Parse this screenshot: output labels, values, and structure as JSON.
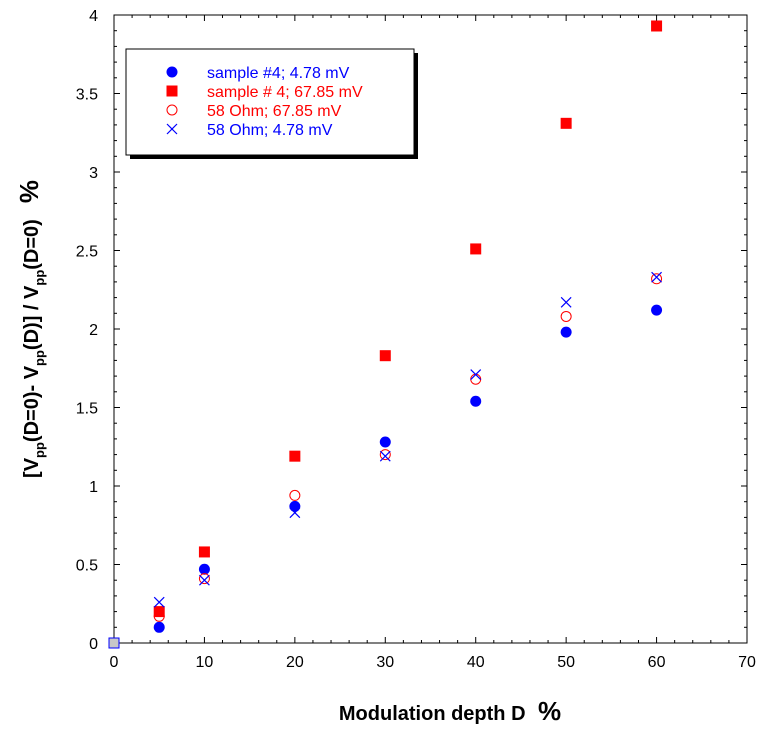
{
  "chart_data": {
    "type": "scatter",
    "xlim": [
      0,
      70
    ],
    "ylim": [
      0,
      4
    ],
    "x_ticks": [
      "0",
      "10",
      "20",
      "30",
      "40",
      "50",
      "60",
      "70"
    ],
    "y_ticks": [
      "0",
      "0.5",
      "1",
      "1.5",
      "2",
      "2.5",
      "3",
      "3.5",
      "4"
    ],
    "xlabel": "Modulation depth D",
    "xlabel_unit": "%",
    "ylabel": {
      "p1": "[V",
      "s1": "pp",
      "p2": "(D=0)- V",
      "s2": "pp",
      "p3": "(D)] / V",
      "s3": "pp",
      "p4": "(D=0)",
      "unit": "%"
    },
    "grid": false,
    "legend_position": "top-left",
    "series": [
      {
        "name": "sample #4; 4.78 mV",
        "marker": "filled-circle",
        "color": "#0000ff",
        "x": [
          0,
          5,
          10,
          20,
          30,
          40,
          50,
          60
        ],
        "y": [
          0,
          0.1,
          0.47,
          0.87,
          1.28,
          1.54,
          1.98,
          2.12
        ]
      },
      {
        "name": "sample # 4; 67.85 mV",
        "marker": "filled-square",
        "color": "#ff0000",
        "x": [
          0,
          5,
          10,
          20,
          30,
          40,
          50,
          60
        ],
        "y": [
          0,
          0.2,
          0.58,
          1.19,
          1.83,
          2.51,
          3.31,
          3.93
        ]
      },
      {
        "name": "58 Ohm; 67.85 mV",
        "marker": "open-circle",
        "color": "#ff0000",
        "x": [
          0,
          5,
          10,
          20,
          30,
          40,
          50,
          60
        ],
        "y": [
          0,
          0.17,
          0.41,
          0.94,
          1.2,
          1.68,
          2.08,
          2.32
        ]
      },
      {
        "name": "58 Ohm; 4.78 mV",
        "marker": "cross",
        "color": "#0000ff",
        "x": [
          0,
          5,
          10,
          20,
          30,
          40,
          50,
          60
        ],
        "y": [
          0,
          0.26,
          0.4,
          0.83,
          1.19,
          1.71,
          2.17,
          2.33
        ]
      }
    ]
  }
}
